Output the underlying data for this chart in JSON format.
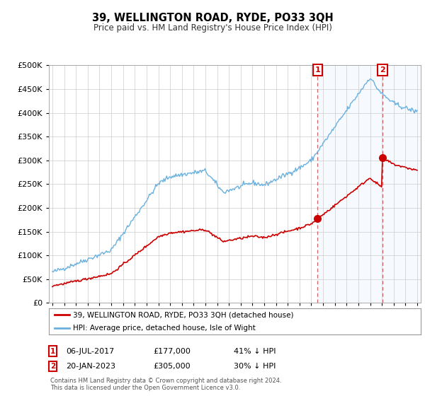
{
  "title": "39, WELLINGTON ROAD, RYDE, PO33 3QH",
  "subtitle": "Price paid vs. HM Land Registry's House Price Index (HPI)",
  "hpi_color": "#6ab0de",
  "price_color": "#cc0000",
  "background_color": "#ffffff",
  "plot_bg_color": "#ffffff",
  "shade_color": "#ddeeff",
  "vline_color": "#cc6666",
  "ylim": [
    0,
    500000
  ],
  "yticks": [
    0,
    50000,
    100000,
    150000,
    200000,
    250000,
    300000,
    350000,
    400000,
    450000,
    500000
  ],
  "t1_year": 2017.542,
  "t2_year": 2023.042,
  "transaction1_date": "06-JUL-2017",
  "transaction1_price": 177000,
  "transaction1_label": "41% ↓ HPI",
  "transaction2_date": "20-JAN-2023",
  "transaction2_price": 305000,
  "transaction2_label": "30% ↓ HPI",
  "legend_label_red": "39, WELLINGTON ROAD, RYDE, PO33 3QH (detached house)",
  "legend_label_blue": "HPI: Average price, detached house, Isle of Wight",
  "footnote": "Contains HM Land Registry data © Crown copyright and database right 2024.\nThis data is licensed under the Open Government Licence v3.0.",
  "xmin": 1995,
  "xmax": 2026
}
